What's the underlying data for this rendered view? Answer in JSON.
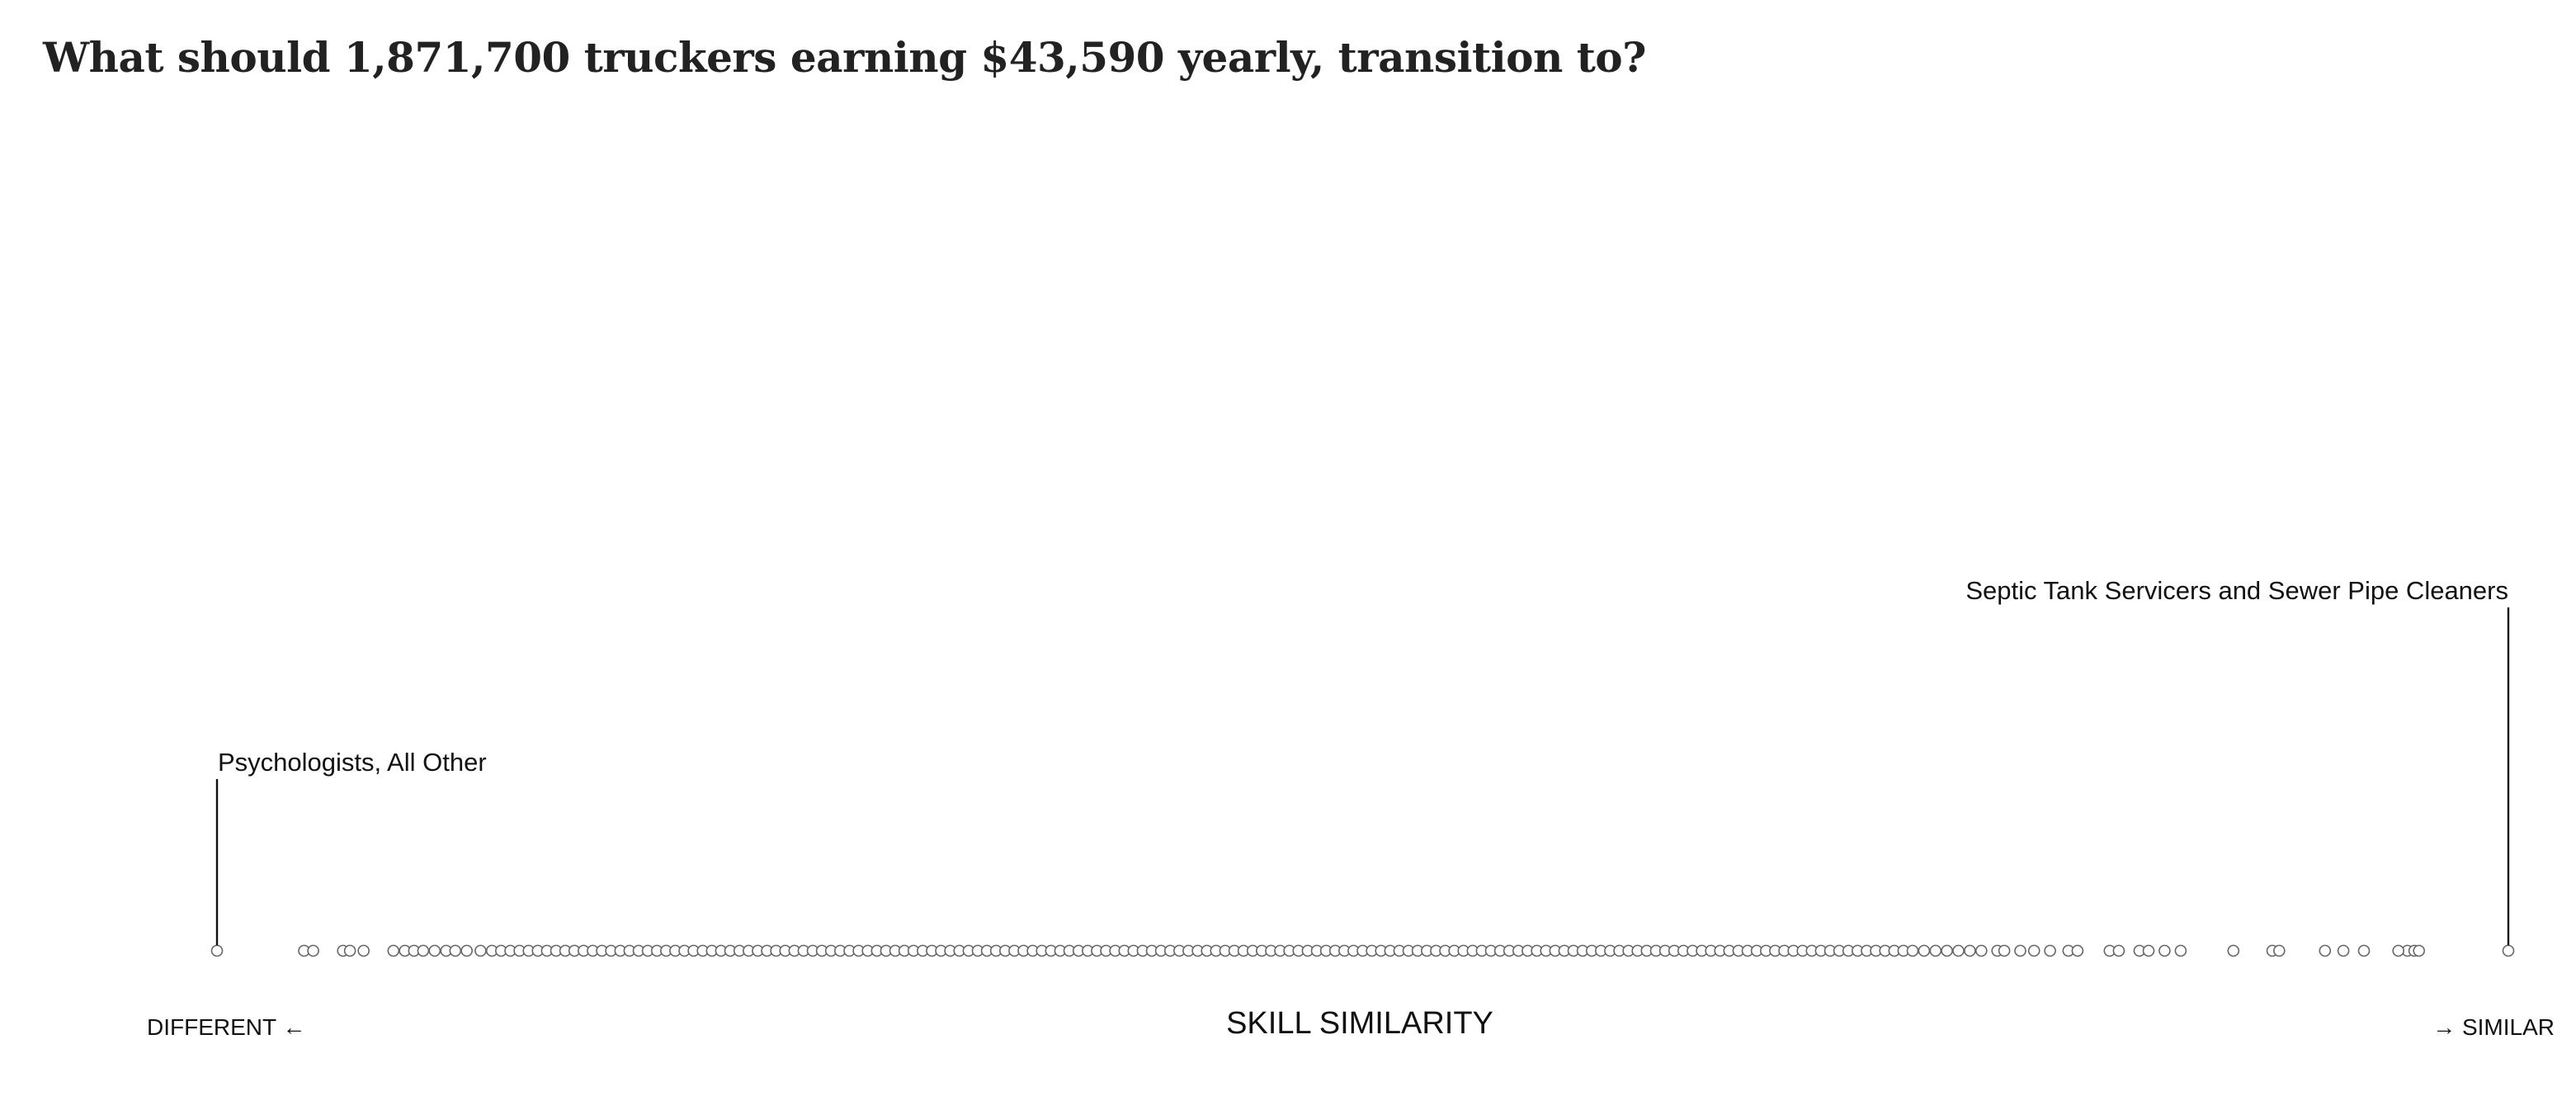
{
  "title": "What should 1,871,700 truckers earning $43,590 yearly, transition to?",
  "colors": {
    "text": "#222222",
    "dot_stroke": "#666666",
    "dot_fill": "#ffffff",
    "leader": "#111111"
  },
  "chart_data": {
    "type": "scatter",
    "title": "What should 1,871,700 truckers earning $43,590 yearly, transition to?",
    "xlabel": "SKILL SIMILARITY",
    "left_label": "DIFFERENT ←",
    "right_label": "→ SIMILAR",
    "xlim": [
      0,
      1
    ],
    "grid": false,
    "annotations": [
      {
        "label": "Psychologists, All Other",
        "x": 0.0
      },
      {
        "label": "Septic Tank Servicers and Sewer Pipe Cleaners",
        "x": 1.0
      }
    ],
    "x": [
      0.0,
      0.038,
      0.042,
      0.055,
      0.058,
      0.064,
      0.077,
      0.082,
      0.086,
      0.09,
      0.095,
      0.1,
      0.104,
      0.109,
      0.115,
      0.12,
      0.124,
      0.128,
      0.132,
      0.136,
      0.14,
      0.144,
      0.148,
      0.152,
      0.156,
      0.16,
      0.164,
      0.168,
      0.172,
      0.176,
      0.18,
      0.184,
      0.188,
      0.192,
      0.196,
      0.2,
      0.204,
      0.208,
      0.212,
      0.216,
      0.22,
      0.224,
      0.228,
      0.232,
      0.236,
      0.24,
      0.244,
      0.248,
      0.252,
      0.256,
      0.26,
      0.264,
      0.268,
      0.272,
      0.276,
      0.28,
      0.284,
      0.288,
      0.292,
      0.296,
      0.3,
      0.304,
      0.308,
      0.312,
      0.316,
      0.32,
      0.324,
      0.328,
      0.332,
      0.336,
      0.34,
      0.344,
      0.348,
      0.352,
      0.356,
      0.36,
      0.364,
      0.368,
      0.372,
      0.376,
      0.38,
      0.384,
      0.388,
      0.392,
      0.396,
      0.4,
      0.404,
      0.408,
      0.412,
      0.416,
      0.42,
      0.424,
      0.428,
      0.432,
      0.436,
      0.44,
      0.444,
      0.448,
      0.452,
      0.456,
      0.46,
      0.464,
      0.468,
      0.472,
      0.476,
      0.48,
      0.484,
      0.488,
      0.492,
      0.496,
      0.5,
      0.504,
      0.508,
      0.512,
      0.516,
      0.52,
      0.524,
      0.528,
      0.532,
      0.536,
      0.54,
      0.544,
      0.548,
      0.552,
      0.556,
      0.56,
      0.564,
      0.568,
      0.572,
      0.576,
      0.58,
      0.584,
      0.588,
      0.592,
      0.596,
      0.6,
      0.604,
      0.608,
      0.612,
      0.616,
      0.62,
      0.624,
      0.628,
      0.632,
      0.636,
      0.64,
      0.644,
      0.648,
      0.652,
      0.656,
      0.66,
      0.664,
      0.668,
      0.672,
      0.676,
      0.68,
      0.684,
      0.688,
      0.692,
      0.696,
      0.7,
      0.704,
      0.708,
      0.712,
      0.716,
      0.72,
      0.724,
      0.728,
      0.732,
      0.736,
      0.74,
      0.745,
      0.75,
      0.755,
      0.76,
      0.765,
      0.77,
      0.777,
      0.78,
      0.787,
      0.793,
      0.8,
      0.808,
      0.812,
      0.826,
      0.83,
      0.839,
      0.843,
      0.85,
      0.857,
      0.88,
      0.897,
      0.9,
      0.92,
      0.928,
      0.937,
      0.956,
      0.959,
      0.961,
      0.952,
      1.0
    ]
  }
}
